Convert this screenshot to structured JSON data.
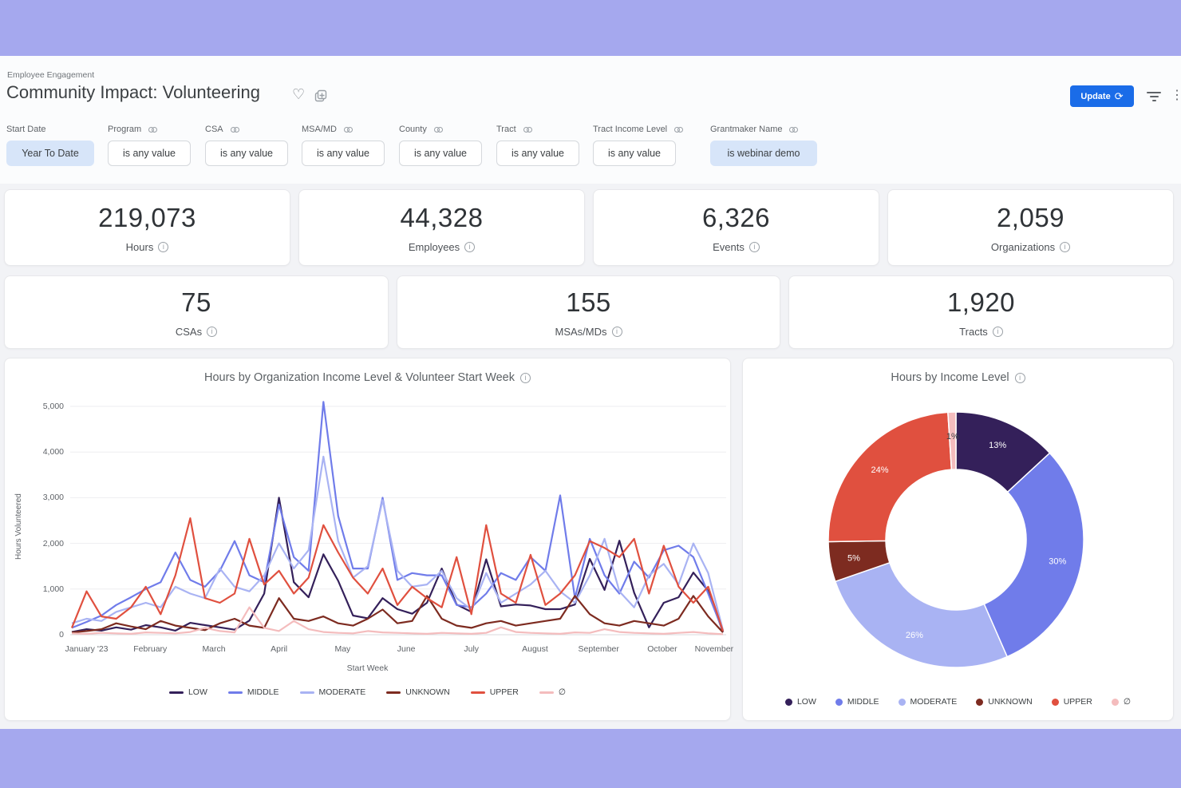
{
  "theme": {
    "band_color": "#a5a8ee",
    "page_bg": "#f2f3f6",
    "accent_blue": "#1a6ce8",
    "chip_active_bg": "#d7e5f9"
  },
  "header": {
    "breadcrumb": "Employee Engagement",
    "title": "Community Impact: Volunteering",
    "update_label": "Update"
  },
  "filters": {
    "items": [
      {
        "label": "Start Date",
        "value": "Year To Date",
        "active": true,
        "linked": false
      },
      {
        "label": "Program",
        "value": "is any value",
        "active": false,
        "linked": true
      },
      {
        "label": "CSA",
        "value": "is any value",
        "active": false,
        "linked": true
      },
      {
        "label": "MSA/MD",
        "value": "is any value",
        "active": false,
        "linked": true
      },
      {
        "label": "County",
        "value": "is any value",
        "active": false,
        "linked": true
      },
      {
        "label": "Tract",
        "value": "is any value",
        "active": false,
        "linked": true
      },
      {
        "label": "Tract Income Level",
        "value": "is any value",
        "active": false,
        "linked": true
      },
      {
        "label": "Grantmaker Name",
        "value": "is webinar demo",
        "active": true,
        "linked": true
      }
    ]
  },
  "kpis": {
    "items": [
      {
        "value": "219,073",
        "label": "Hours"
      },
      {
        "value": "44,328",
        "label": "Employees"
      },
      {
        "value": "6,326",
        "label": "Events"
      },
      {
        "value": "2,059",
        "label": "Organizations"
      },
      {
        "value": "75",
        "label": "CSAs"
      },
      {
        "value": "155",
        "label": "MSAs/MDs"
      },
      {
        "value": "1,920",
        "label": "Tracts"
      }
    ]
  },
  "chart_data": [
    {
      "type": "line",
      "title": "Hours by Organization Income Level & Volunteer Start Week",
      "xlabel": "Start Week",
      "ylabel": "Hours Volunteered",
      "ylim": [
        0,
        5000
      ],
      "grid": true,
      "legend_position": "bottom",
      "yticks": [
        0,
        1000,
        2000,
        3000,
        4000,
        5000
      ],
      "ytick_labels": [
        "0",
        "1,000",
        "2,000",
        "3,000",
        "4,000",
        "5,000"
      ],
      "x_tick_labels": [
        "January '23",
        "February",
        "March",
        "April",
        "May",
        "June",
        "July",
        "August",
        "September",
        "October",
        "November"
      ],
      "x_tick_weeks": [
        1,
        5.3,
        9.6,
        14,
        18.3,
        22.6,
        27,
        31.3,
        35.6,
        39.9,
        43.4
      ],
      "n_points": 45,
      "series": [
        {
          "name": "LOW",
          "color": "#34205a",
          "values": [
            60,
            120,
            90,
            160,
            110,
            210,
            160,
            90,
            260,
            210,
            160,
            110,
            310,
            900,
            3000,
            1150,
            820,
            1760,
            1180,
            420,
            360,
            800,
            560,
            460,
            700,
            1450,
            660,
            500,
            1650,
            620,
            660,
            640,
            560,
            560,
            660,
            1660,
            980,
            2060,
            920,
            160,
            700,
            820,
            1360,
            960,
            60
          ]
        },
        {
          "name": "MIDDLE",
          "color": "#707cea",
          "values": [
            150,
            280,
            420,
            650,
            820,
            1000,
            1150,
            1800,
            1200,
            1050,
            1400,
            2050,
            1300,
            1150,
            2850,
            1700,
            1400,
            5100,
            2600,
            1450,
            1450,
            3000,
            1200,
            1350,
            1300,
            1300,
            650,
            600,
            900,
            1350,
            1200,
            1700,
            1400,
            3050,
            800,
            2100,
            1300,
            900,
            1600,
            1250,
            1850,
            1950,
            1700,
            900,
            80
          ]
        },
        {
          "name": "MODERATE",
          "color": "#a9b3f3",
          "values": [
            250,
            350,
            300,
            500,
            600,
            700,
            600,
            1050,
            900,
            800,
            1450,
            1050,
            950,
            1300,
            2000,
            1450,
            1850,
            3900,
            2050,
            1250,
            1500,
            2950,
            1400,
            1050,
            1100,
            1400,
            800,
            550,
            1350,
            700,
            900,
            1100,
            1400,
            950,
            700,
            1300,
            2100,
            950,
            600,
            1300,
            1550,
            1100,
            2000,
            1350,
            100
          ]
        },
        {
          "name": "UNKNOWN",
          "color": "#7d2b20",
          "values": [
            50,
            80,
            120,
            250,
            180,
            120,
            300,
            200,
            150,
            100,
            250,
            350,
            200,
            150,
            800,
            350,
            300,
            400,
            250,
            200,
            350,
            550,
            250,
            300,
            850,
            350,
            200,
            150,
            250,
            300,
            200,
            250,
            300,
            350,
            850,
            450,
            250,
            200,
            300,
            250,
            200,
            350,
            850,
            400,
            50
          ]
        },
        {
          "name": "UPPER",
          "color": "#e0503f",
          "values": [
            150,
            950,
            400,
            350,
            600,
            1050,
            450,
            1300,
            2550,
            800,
            700,
            900,
            2100,
            1100,
            1400,
            900,
            1250,
            2400,
            1800,
            1250,
            900,
            1450,
            650,
            1050,
            800,
            600,
            1700,
            450,
            2400,
            900,
            700,
            1750,
            650,
            900,
            1300,
            2050,
            1900,
            1700,
            2100,
            900,
            1950,
            1050,
            700,
            1050,
            80
          ]
        },
        {
          "name": "∅",
          "color": "#f4bcbd",
          "values": [
            30,
            20,
            40,
            30,
            20,
            50,
            40,
            30,
            60,
            150,
            80,
            50,
            600,
            150,
            80,
            300,
            120,
            60,
            40,
            30,
            80,
            50,
            40,
            30,
            20,
            40,
            30,
            20,
            40,
            160,
            60,
            40,
            30,
            20,
            50,
            40,
            120,
            60,
            40,
            30,
            20,
            40,
            60,
            30,
            10
          ]
        }
      ]
    },
    {
      "type": "donut",
      "title": "Hours by Income Level",
      "legend_position": "bottom",
      "slices": [
        {
          "name": "LOW",
          "pct": 13,
          "color": "#34205a",
          "label_color": "#ffffff"
        },
        {
          "name": "MIDDLE",
          "pct": 30,
          "color": "#707cea",
          "label_color": "#ffffff"
        },
        {
          "name": "MODERATE",
          "pct": 26,
          "color": "#a9b3f3",
          "label_color": "#ffffff"
        },
        {
          "name": "UNKNOWN",
          "pct": 5,
          "color": "#7d2b20",
          "label_color": "#ffffff"
        },
        {
          "name": "UPPER",
          "pct": 24,
          "color": "#e0503f",
          "label_color": "#ffffff"
        },
        {
          "name": "∅",
          "pct": 1,
          "color": "#f4bcbd",
          "label_color": "#3c4043"
        }
      ]
    }
  ]
}
